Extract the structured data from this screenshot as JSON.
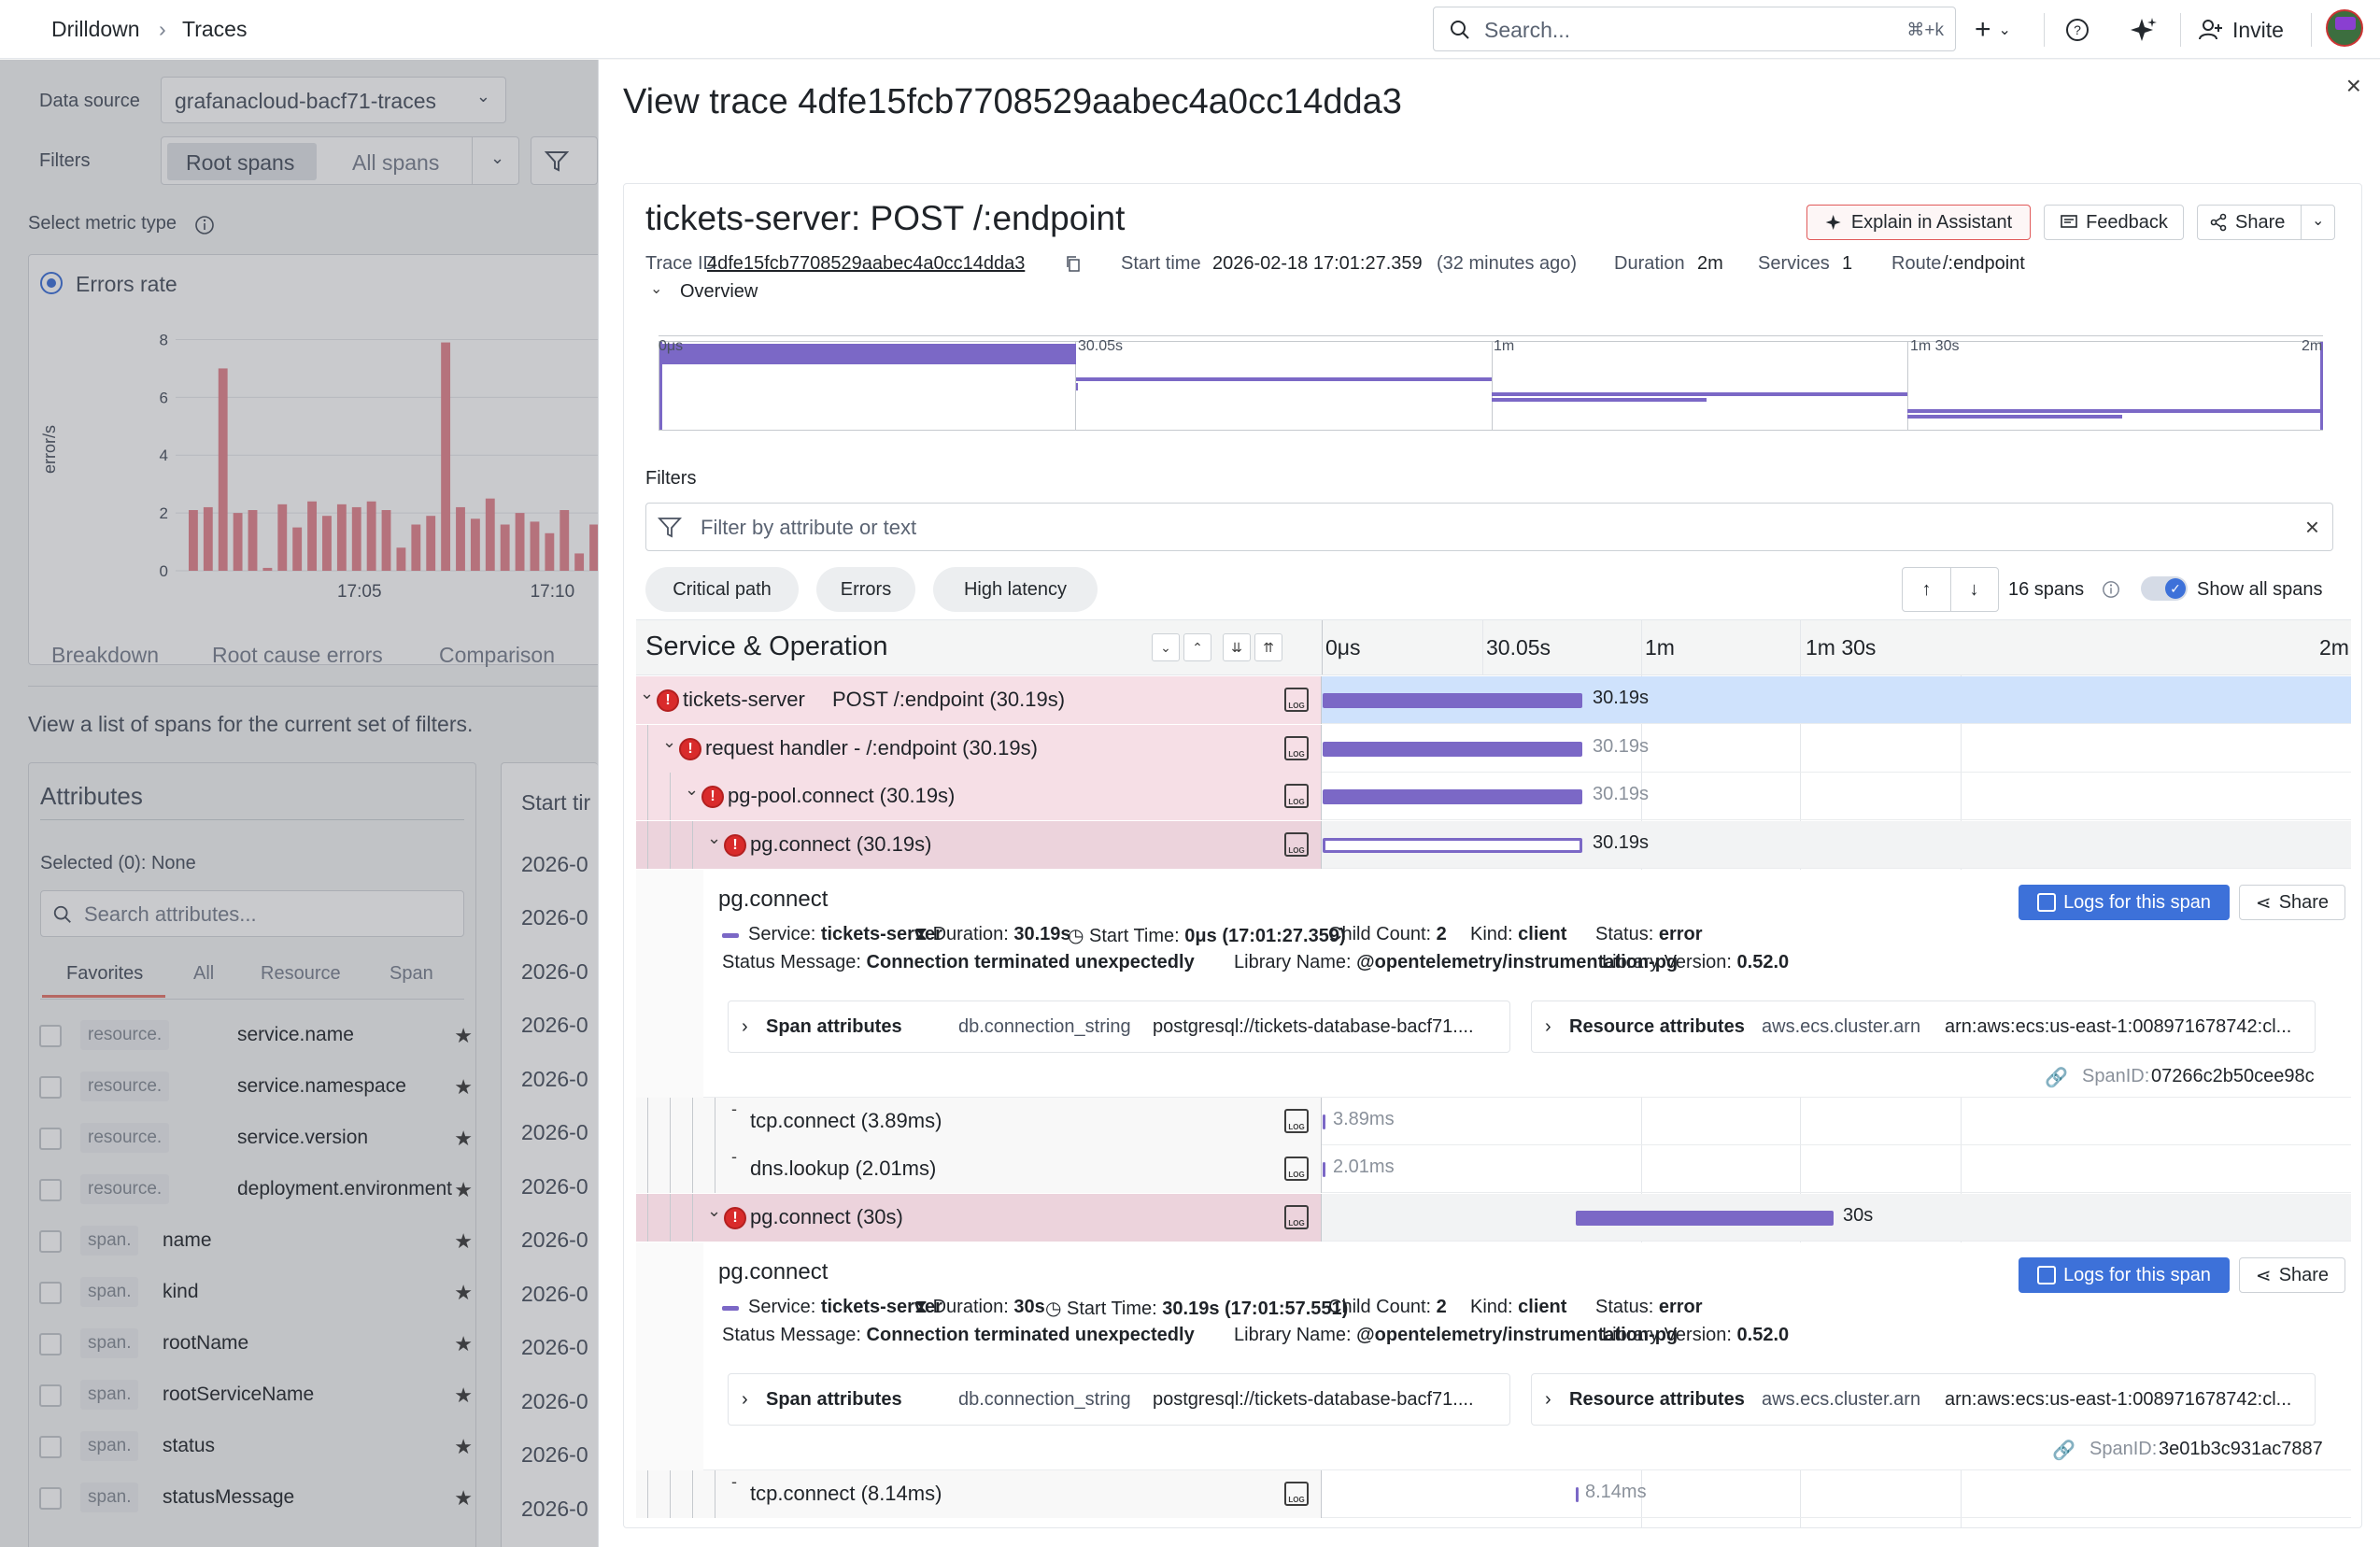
{
  "nav": {
    "breadcrumb_root": "Drilldown",
    "breadcrumb_sep": "›",
    "breadcrumb_current": "Traces",
    "search_placeholder": "Search...",
    "search_shortcut": "⌘+k",
    "invite_label": "Invite"
  },
  "left": {
    "data_source_label": "Data source",
    "data_source_value": "grafanacloud-bacf71-traces",
    "filters_label": "Filters",
    "root_spans": "Root spans",
    "all_spans": "All spans",
    "metric_type_label": "Select metric type",
    "metric_option": "Errors rate",
    "tabs": [
      "Breakdown",
      "Root cause errors",
      "Comparison"
    ],
    "spans_description": "View a list of spans for the current set of filters.",
    "attributes_title": "Attributes",
    "selected_text": "Selected (0): None",
    "attr_search_placeholder": "Search attributes...",
    "attr_tabs": [
      "Favorites",
      "All",
      "Resource",
      "Span"
    ],
    "attributes": [
      {
        "prefix": "resource.",
        "name": "service.name"
      },
      {
        "prefix": "resource.",
        "name": "service.namespace"
      },
      {
        "prefix": "resource.",
        "name": "service.version"
      },
      {
        "prefix": "resource.",
        "name": "deployment.environment"
      },
      {
        "prefix": "span.",
        "name": "name"
      },
      {
        "prefix": "span.",
        "name": "kind"
      },
      {
        "prefix": "span.",
        "name": "rootName"
      },
      {
        "prefix": "span.",
        "name": "rootServiceName"
      },
      {
        "prefix": "span.",
        "name": "status"
      },
      {
        "prefix": "span.",
        "name": "statusMessage"
      }
    ],
    "start_time_header": "Start tir",
    "start_time_values": [
      "2026-0",
      "2026-0",
      "2026-0",
      "2026-0",
      "2026-0",
      "2026-0",
      "2026-0",
      "2026-0",
      "2026-0",
      "2026-0",
      "2026-0",
      "2026-0",
      "2026-0"
    ]
  },
  "chart_data": {
    "type": "bar",
    "ylabel": "error/s",
    "yticks": [
      0,
      2,
      4,
      6,
      8
    ],
    "ylim": [
      0,
      8.5
    ],
    "xtick_labels": [
      "17:05",
      "17:10"
    ],
    "values": [
      2.1,
      2.2,
      7.0,
      2.0,
      2.1,
      0.1,
      2.3,
      1.5,
      2.4,
      1.9,
      2.3,
      2.2,
      2.4,
      2.1,
      0.8,
      1.6,
      1.9,
      7.9,
      2.2,
      1.8,
      2.5,
      1.6,
      2.0,
      1.7,
      1.3,
      2.1,
      0.6,
      1.6
    ],
    "color": "#e3868f"
  },
  "drawer": {
    "title": "View trace 4dfe15fcb7708529aabec4a0cc14dda3",
    "close": "×",
    "trace_title": "tickets-server: POST /:endpoint",
    "explain_label": "Explain in Assistant",
    "feedback_label": "Feedback",
    "share_label": "Share",
    "trace_id_label": "Trace ID",
    "trace_id": "4dfe15fcb7708529aabec4a0cc14dda3",
    "start_time_label": "Start time",
    "start_time": "2026-02-18 17:01:27.359",
    "start_time_rel": "(32 minutes ago)",
    "duration_label": "Duration",
    "duration": "2m",
    "services_label": "Services",
    "services": "1",
    "route_label": "Route",
    "route": "/:endpoint",
    "overview_label": "Overview",
    "overview_ticks": [
      "0μs",
      "30.05s",
      "1m",
      "1m 30s",
      "2m"
    ],
    "filters_label": "Filters",
    "filter_placeholder": "Filter by attribute or text",
    "quick_filters": [
      "Critical path",
      "Errors",
      "High latency"
    ],
    "span_count": "16 spans",
    "show_all_spans": "Show all spans",
    "table_header": "Service & Operation",
    "timeline_ticks": [
      "0μs",
      "30.05s",
      "1m",
      "1m 30s",
      "2m"
    ],
    "rows": [
      {
        "service": "tickets-server",
        "op": "POST /:endpoint (30.19s)",
        "bar": "30.19s"
      },
      {
        "op": "request handler - /:endpoint (30.19s)",
        "bar": "30.19s"
      },
      {
        "op": "pg-pool.connect (30.19s)",
        "bar": "30.19s"
      },
      {
        "op": "pg.connect (30.19s)",
        "bar": "30.19s"
      },
      {
        "op": "tcp.connect (3.89ms)",
        "bar": "3.89ms"
      },
      {
        "op": "dns.lookup (2.01ms)",
        "bar": "2.01ms"
      },
      {
        "op": "pg.connect (30s)",
        "bar": "30s"
      },
      {
        "op": "tcp.connect (8.14ms)",
        "bar": "8.14ms"
      }
    ],
    "details": [
      {
        "title": "pg.connect",
        "logs_btn": "Logs for this span",
        "share": "Share",
        "service_label": "Service:",
        "service": "tickets-server",
        "duration_label": "Duration:",
        "duration": "30.19s",
        "start_label": "Start Time:",
        "start": "0μs (17:01:27.359)",
        "child_label": "Child Count:",
        "child": "2",
        "kind_label": "Kind:",
        "kind": "client",
        "status_label": "Status:",
        "status": "error",
        "msg_label": "Status Message:",
        "msg": "Connection terminated unexpectedly",
        "lib_label": "Library Name:",
        "lib": "@opentelemetry/instrumentation-pg",
        "libv_label": "Library Version:",
        "libv": "0.52.0",
        "span_attrs": "Span attributes",
        "span_attr_key": "db.connection_string",
        "span_attr_val": "postgresql://tickets-database-bacf71....",
        "res_attrs": "Resource attributes",
        "res_attr_key": "aws.ecs.cluster.arn",
        "res_attr_val": "arn:aws:ecs:us-east-1:008971678742:cl...",
        "spanid_label": "SpanID:",
        "spanid": "07266c2b50cee98c"
      },
      {
        "title": "pg.connect",
        "logs_btn": "Logs for this span",
        "share": "Share",
        "service_label": "Service:",
        "service": "tickets-server",
        "duration_label": "Duration:",
        "duration": "30s",
        "start_label": "Start Time:",
        "start": "30.19s (17:01:57.551)",
        "child_label": "Child Count:",
        "child": "2",
        "kind_label": "Kind:",
        "kind": "client",
        "status_label": "Status:",
        "status": "error",
        "msg_label": "Status Message:",
        "msg": "Connection terminated unexpectedly",
        "lib_label": "Library Name:",
        "lib": "@opentelemetry/instrumentation-pg",
        "libv_label": "Library Version:",
        "libv": "0.52.0",
        "span_attrs": "Span attributes",
        "span_attr_key": "db.connection_string",
        "span_attr_val": "postgresql://tickets-database-bacf71....",
        "res_attrs": "Resource attributes",
        "res_attr_key": "aws.ecs.cluster.arn",
        "res_attr_val": "arn:aws:ecs:us-east-1:008971678742:cl...",
        "spanid_label": "SpanID:",
        "spanid": "3e01b3c931ac7887"
      }
    ]
  }
}
